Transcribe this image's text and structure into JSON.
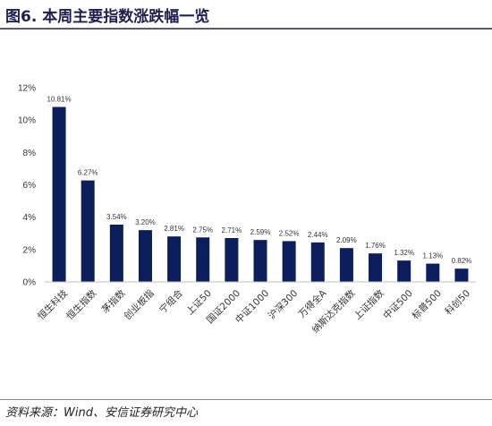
{
  "title": "图6. 本周主要指数涨跌幅一览",
  "source": "资料来源：Wind、安信证券研究中心",
  "chart_data": {
    "type": "bar",
    "categories": [
      "恒生科技",
      "恒生指数",
      "茅指数",
      "创业板指",
      "宁组合",
      "上证50",
      "国证2000",
      "中证1000",
      "沪深300",
      "万得全A",
      "纳斯达克指数",
      "上证指数",
      "中证500",
      "标普500",
      "科创50"
    ],
    "values": [
      10.81,
      6.27,
      3.54,
      3.2,
      2.81,
      2.75,
      2.71,
      2.59,
      2.52,
      2.44,
      2.09,
      1.76,
      1.32,
      1.13,
      0.82
    ],
    "data_labels": [
      "10.81%",
      "6.27%",
      "3.54%",
      "3.20%",
      "2.81%",
      "2.75%",
      "2.71%",
      "2.59%",
      "2.52%",
      "2.44%",
      "2.09%",
      "1.76%",
      "1.32%",
      "1.13%",
      "0.82%"
    ],
    "y_ticks": [
      "0%",
      "2%",
      "4%",
      "6%",
      "8%",
      "10%",
      "12%"
    ],
    "ylim": [
      0,
      12
    ],
    "bar_color": "#0d1e5c",
    "axis_color": "#bfbfbf",
    "grid": false,
    "legend": false
  }
}
